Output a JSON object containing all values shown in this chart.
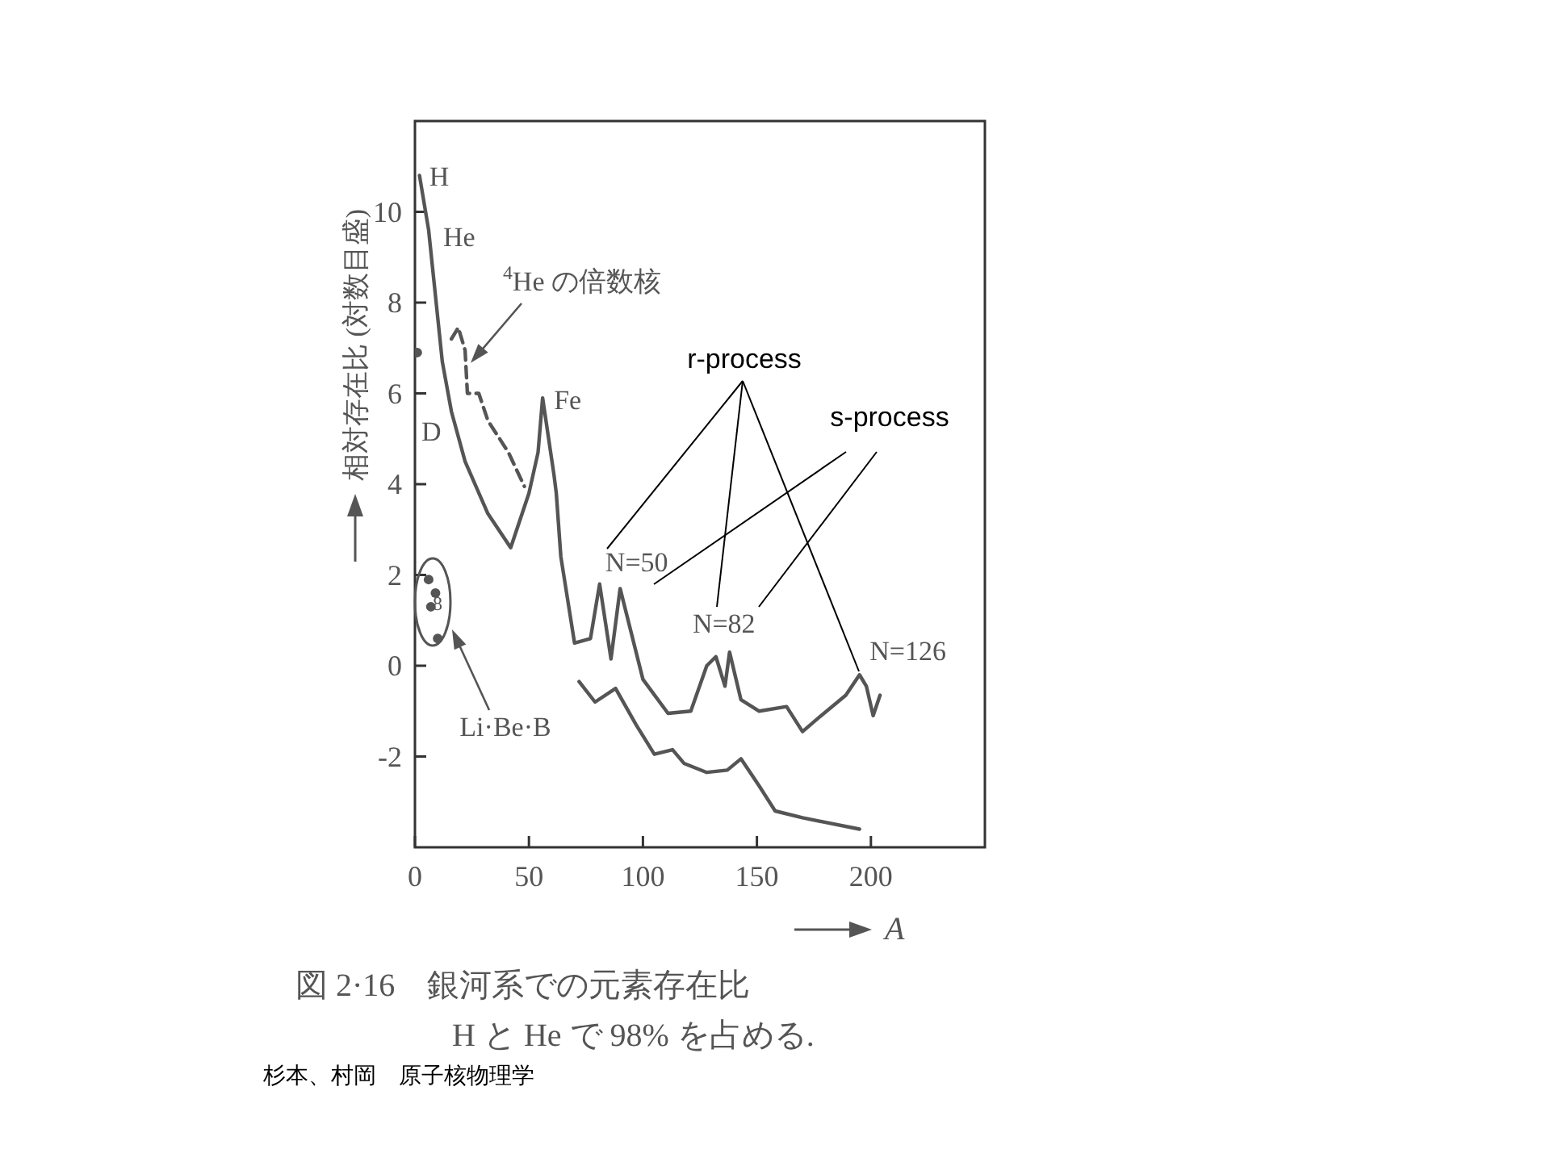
{
  "chart_data": {
    "type": "line",
    "title": "図 2·16　銀河系での元素存在比",
    "subtitle": "H と He で 98% を占める.",
    "xlabel": "A",
    "ylabel": "相対存在比 (対数目盛)",
    "xlim": [
      0,
      250
    ],
    "ylim": [
      -4,
      12
    ],
    "xticks": [
      0,
      50,
      100,
      150,
      200
    ],
    "yticks": [
      -2,
      0,
      2,
      4,
      6,
      8,
      10
    ],
    "grid": false,
    "series": [
      {
        "color": "#555555",
        "x": [
          2,
          6,
          12,
          16,
          22,
          32,
          42,
          50,
          54,
          56,
          61,
          62,
          64,
          70,
          77,
          81,
          86,
          90,
          93,
          100,
          111,
          121,
          128,
          132,
          136,
          138,
          143,
          151,
          163,
          170,
          177,
          189,
          195,
          198,
          201,
          204
        ],
        "values": [
          10.8,
          9.6,
          6.7,
          5.6,
          4.5,
          3.35,
          2.6,
          3.8,
          4.7,
          5.9,
          4.2,
          3.8,
          2.4,
          0.5,
          0.6,
          1.8,
          0.15,
          1.7,
          1.1,
          -0.3,
          -1.05,
          -1.0,
          0.0,
          0.2,
          -0.45,
          0.3,
          -0.75,
          -1.0,
          -0.9,
          -1.45,
          -1.15,
          -0.65,
          -0.2,
          -0.45,
          -1.1,
          -0.65
        ]
      },
      {
        "color": "#555555",
        "line_style": "dashed",
        "x": [
          16,
          19,
          22,
          23,
          28,
          32,
          41,
          48
        ],
        "values": [
          7.2,
          7.45,
          6.95,
          6.0,
          6.0,
          5.4,
          4.7,
          3.95
        ]
      },
      {
        "color": "#555555",
        "x": [
          72,
          79,
          88,
          97,
          105,
          113,
          118,
          128,
          137,
          143,
          151,
          158,
          170,
          195
        ],
        "values": [
          -0.35,
          -0.8,
          -0.5,
          -1.3,
          -1.95,
          -1.85,
          -2.15,
          -2.35,
          -2.3,
          -2.05,
          -2.65,
          -3.2,
          -3.35,
          -3.6
        ]
      },
      {
        "type": "scatter",
        "color": "#555555",
        "marker": "circle",
        "x": [
          1,
          6,
          7,
          9,
          10
        ],
        "values": [
          6.9,
          1.9,
          1.3,
          1.6,
          0.6
        ]
      }
    ],
    "annotations": [
      {
        "text": "H",
        "x": 2,
        "y": 10.8
      },
      {
        "text": "He",
        "x": 6,
        "y": 9.6
      },
      "D",
      {
        "text": "$^{4}$He の倍数核",
        "x": 23,
        "y": 6.6
      },
      {
        "text": "Fe",
        "x": 56,
        "y": 5.9
      },
      {
        "text": "N=50",
        "x": 81,
        "y": 1.8
      },
      {
        "text": "N=82",
        "x": 132,
        "y": 0.2
      },
      {
        "text": "N=126",
        "x": 195,
        "y": -0.2
      },
      "Li·Be·B",
      "8",
      "r-process",
      "s-process",
      "杉本、村岡　原子核物理学"
    ]
  }
}
